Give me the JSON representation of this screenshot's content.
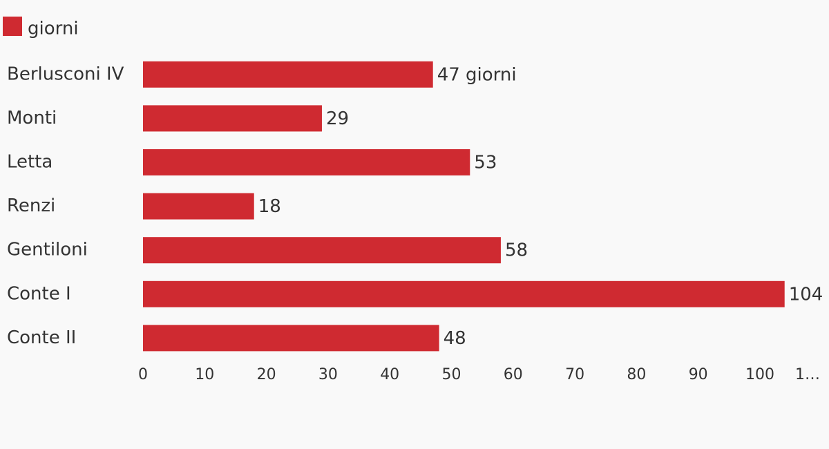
{
  "chart_data": {
    "type": "bar",
    "orientation": "horizontal",
    "categories": [
      "Berlusconi IV",
      "Monti",
      "Letta",
      "Renzi",
      "Gentiloni",
      "Conte I",
      "Conte II"
    ],
    "series": [
      {
        "name": "giorni",
        "color": "#cf2a31",
        "values": [
          47,
          29,
          53,
          18,
          58,
          104,
          48
        ],
        "value_labels": [
          "47 giorni",
          "29",
          "53",
          "18",
          "58",
          "104",
          "48"
        ]
      }
    ],
    "xlim": [
      0,
      110
    ],
    "xticks": [
      0,
      10,
      20,
      30,
      40,
      50,
      60,
      70,
      80,
      90,
      100,
      {
        "value": 110,
        "label": "1…"
      }
    ],
    "legend": "top-left"
  }
}
